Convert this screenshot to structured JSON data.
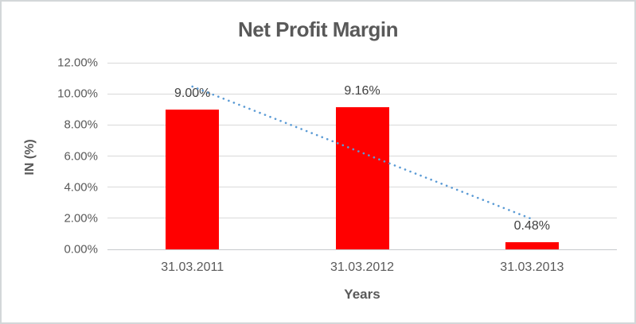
{
  "chart_data": {
    "type": "bar",
    "title": "Net Profit Margin",
    "xlabel": "Years",
    "ylabel": "IN (%)",
    "categories": [
      "31.03.2011",
      "31.03.2012",
      "31.03.2013"
    ],
    "values": [
      9.0,
      9.16,
      0.48
    ],
    "data_labels": [
      "9.00%",
      "9.16%",
      "0.48%"
    ],
    "ylim": [
      0,
      12
    ],
    "ytick_values": [
      0,
      2,
      4,
      6,
      8,
      10,
      12
    ],
    "ytick_labels": [
      "0.00%",
      "2.00%",
      "4.00%",
      "6.00%",
      "8.00%",
      "10.00%",
      "12.00%"
    ],
    "grid": "horizontal",
    "legend": "none",
    "series": [
      {
        "name": "Net Profit Margin",
        "color": "#FF0000",
        "values": [
          9.0,
          9.16,
          0.48
        ]
      }
    ],
    "trendline": {
      "type": "linear",
      "style": "dotted",
      "color": "#5B9BD5",
      "start_value": 10.47,
      "end_value": 1.95
    }
  },
  "colors": {
    "title_text": "#595959",
    "axis_text": "#595959",
    "data_label_text": "#404040",
    "gridline": "#D9D9D9",
    "frame_border": "#D3D7D9",
    "background": "#FFFFFF"
  }
}
